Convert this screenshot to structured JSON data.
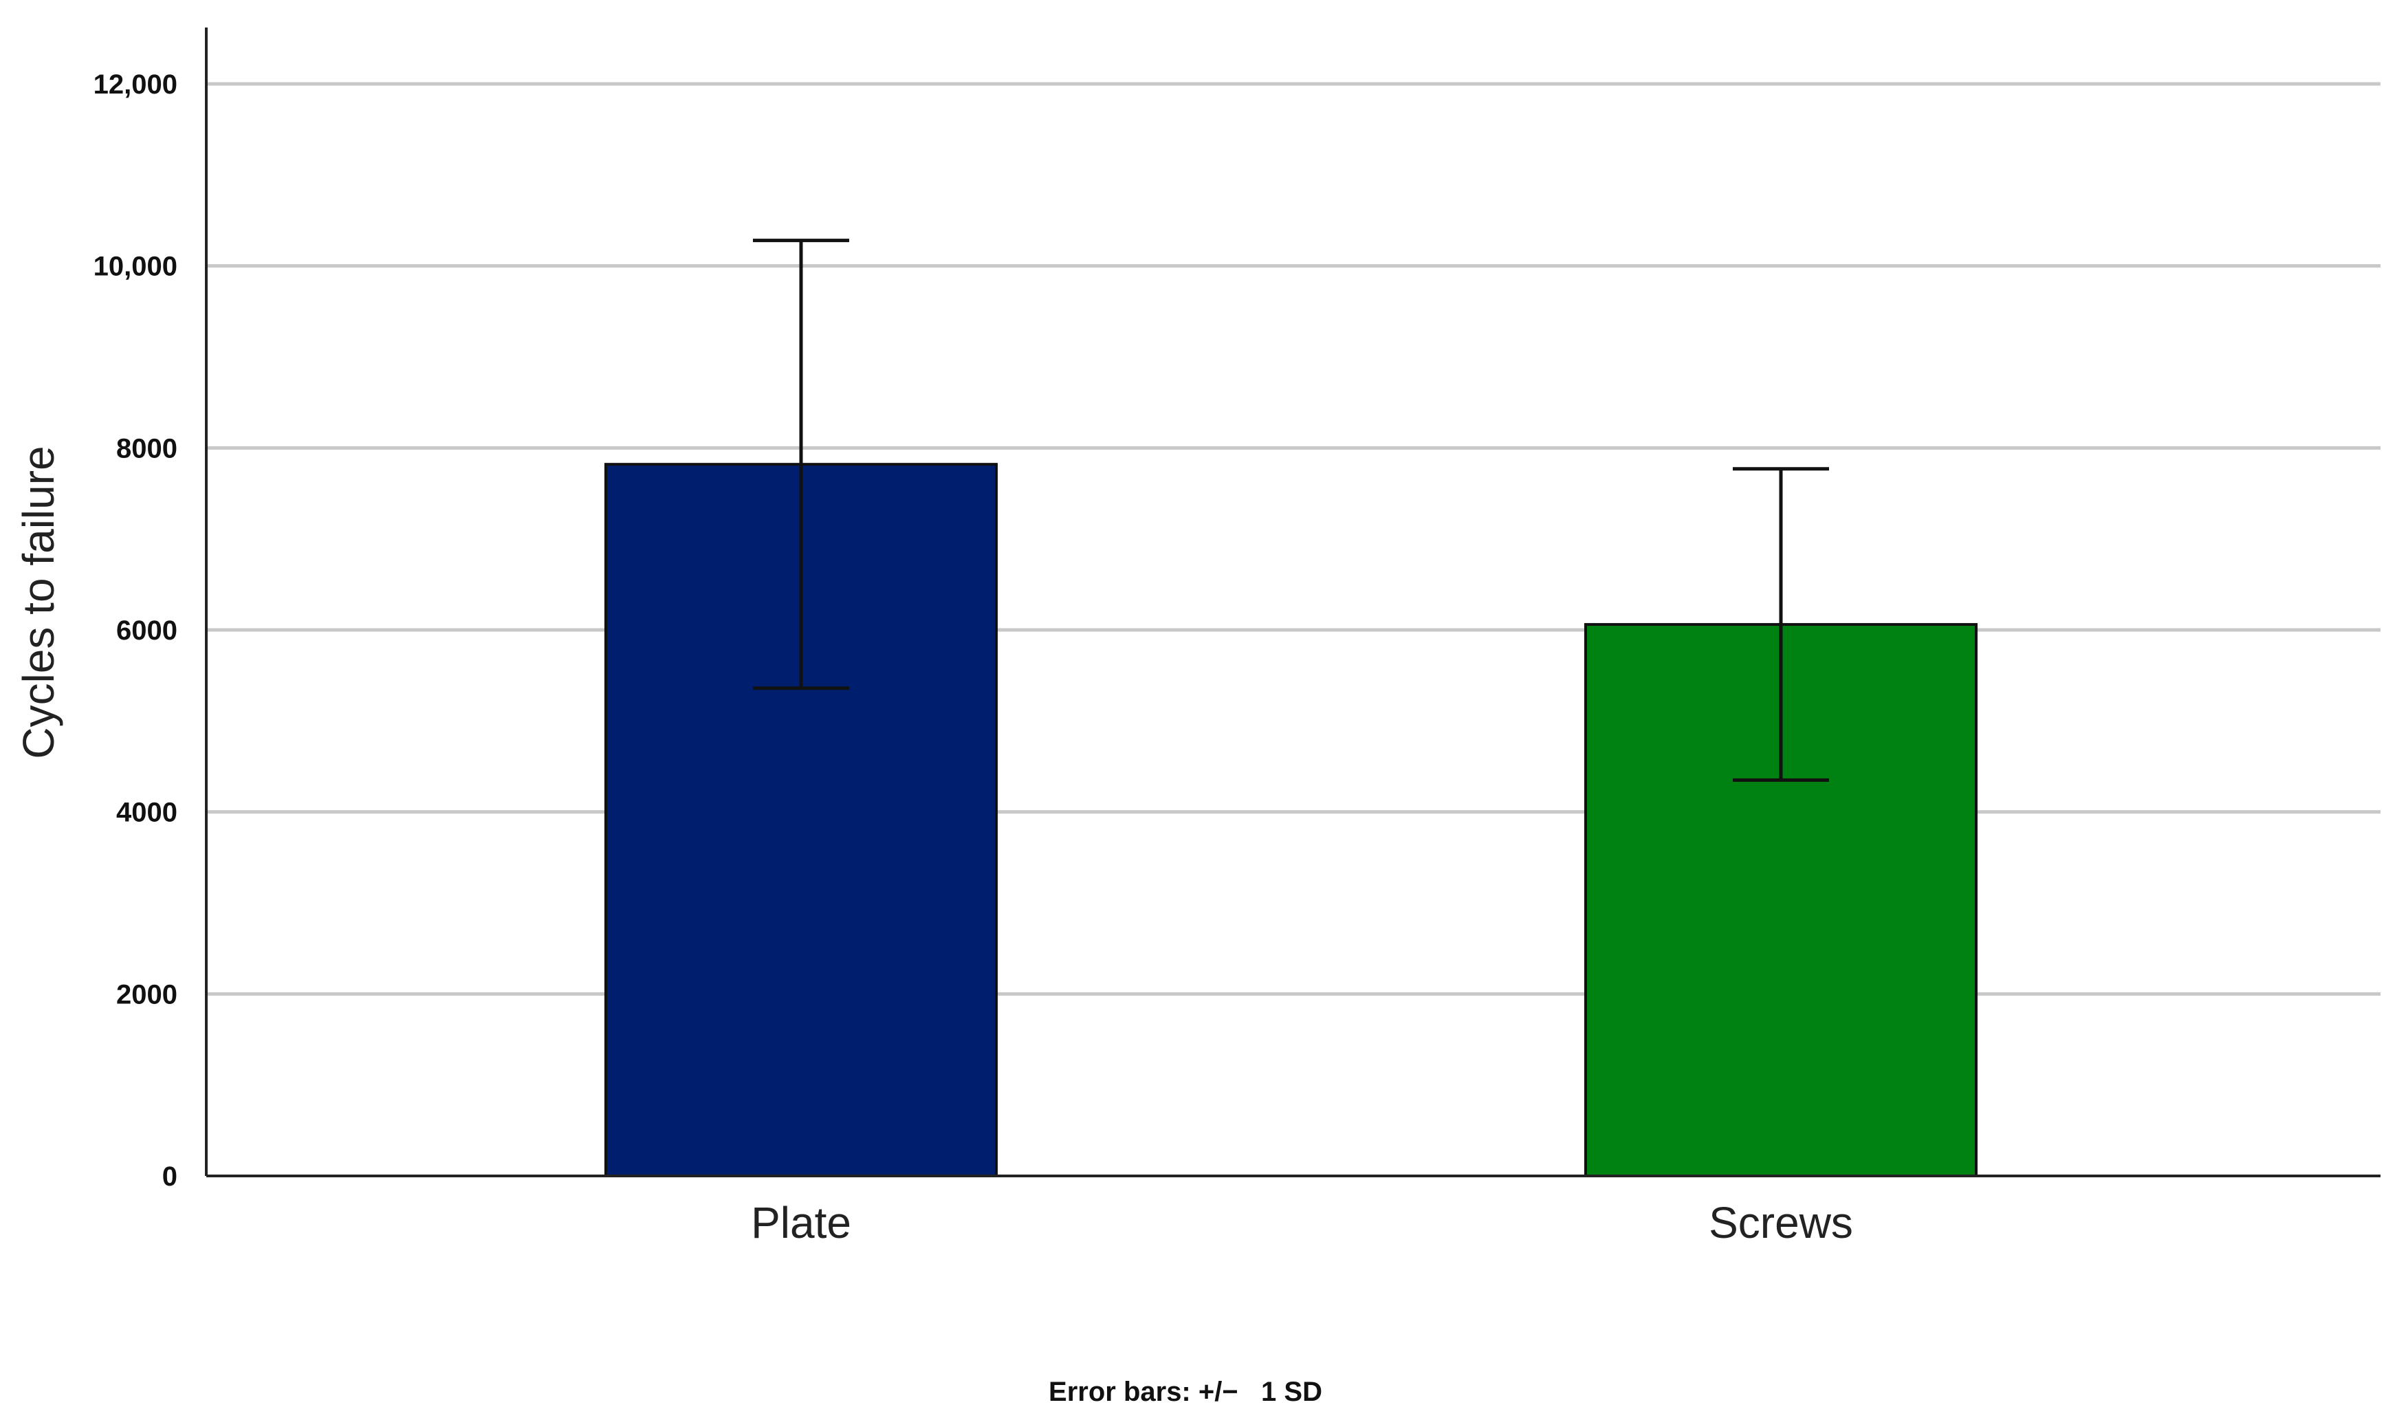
{
  "chart_data": {
    "type": "bar",
    "categories": [
      "Plate",
      "Screws"
    ],
    "values": [
      7820,
      6060
    ],
    "error_sd": [
      2460,
      1710
    ],
    "colors": [
      "#001e6e",
      "#008213"
    ],
    "xlabel": "",
    "ylabel": "Cycles to failure",
    "ylim": [
      0,
      12500
    ],
    "yticks": [
      0,
      2000,
      4000,
      6000,
      8000,
      10000,
      12000
    ],
    "ytick_labels": [
      "0",
      "2000",
      "4000",
      "6000",
      "8000",
      "10,000",
      "12,000"
    ],
    "grid": true,
    "footnote": "Error bars: +/−   1 SD"
  }
}
